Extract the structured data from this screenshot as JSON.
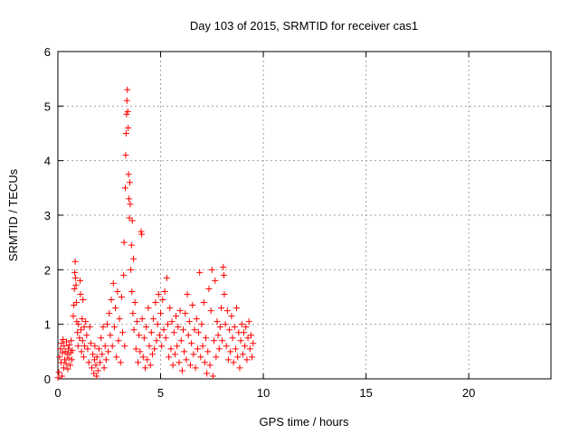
{
  "chart_data": {
    "type": "scatter",
    "title": "Day 103 of 2015, SRMTID for receiver cas1",
    "xlabel": "GPS time / hours",
    "ylabel": "SRMTID / TECUs",
    "xlim": [
      0,
      24
    ],
    "ylim": [
      0,
      6
    ],
    "xticks": [
      0,
      5,
      10,
      15,
      20
    ],
    "yticks": [
      0,
      1,
      2,
      3,
      4,
      5,
      6
    ],
    "grid": true,
    "marker": "+",
    "color": "#ff0000",
    "series": [
      {
        "name": "SRMTID",
        "points": [
          [
            0.0,
            0.02
          ],
          [
            0.05,
            0.12
          ],
          [
            0.08,
            0.4
          ],
          [
            0.12,
            0.55
          ],
          [
            0.15,
            0.3
          ],
          [
            0.18,
            0.65
          ],
          [
            0.2,
            0.05
          ],
          [
            0.22,
            0.48
          ],
          [
            0.25,
            0.72
          ],
          [
            0.28,
            0.2
          ],
          [
            0.3,
            0.6
          ],
          [
            0.33,
            0.35
          ],
          [
            0.36,
            0.5
          ],
          [
            0.4,
            0.28
          ],
          [
            0.42,
            0.68
          ],
          [
            0.45,
            0.45
          ],
          [
            0.48,
            0.18
          ],
          [
            0.5,
            0.55
          ],
          [
            0.53,
            0.38
          ],
          [
            0.56,
            0.62
          ],
          [
            0.6,
            0.25
          ],
          [
            0.62,
            0.48
          ],
          [
            0.65,
            0.7
          ],
          [
            0.68,
            0.35
          ],
          [
            0.7,
            0.52
          ],
          [
            0.75,
            1.15
          ],
          [
            0.78,
            1.35
          ],
          [
            0.8,
            1.65
          ],
          [
            0.82,
            1.95
          ],
          [
            0.84,
            2.15
          ],
          [
            0.86,
            1.85
          ],
          [
            0.88,
            1.72
          ],
          [
            0.9,
            1.4
          ],
          [
            0.92,
            1.05
          ],
          [
            0.95,
            0.85
          ],
          [
            0.98,
            0.6
          ],
          [
            1.0,
            1.0
          ],
          [
            1.05,
            0.75
          ],
          [
            1.08,
            1.8
          ],
          [
            1.1,
            1.55
          ],
          [
            1.12,
            0.9
          ],
          [
            1.15,
            0.5
          ],
          [
            1.18,
            1.1
          ],
          [
            1.2,
            0.7
          ],
          [
            1.22,
            1.45
          ],
          [
            1.25,
            0.4
          ],
          [
            1.28,
            0.95
          ],
          [
            1.3,
            0.6
          ],
          [
            1.35,
            1.05
          ],
          [
            1.4,
            0.8
          ],
          [
            1.45,
            0.55
          ],
          [
            1.5,
            0.3
          ],
          [
            1.55,
            0.95
          ],
          [
            1.6,
            0.65
          ],
          [
            1.65,
            0.2
          ],
          [
            1.7,
            0.45
          ],
          [
            1.75,
            0.1
          ],
          [
            1.78,
            0.35
          ],
          [
            1.8,
            0.6
          ],
          [
            1.85,
            0.25
          ],
          [
            1.88,
            0.05
          ],
          [
            1.9,
            0.4
          ],
          [
            1.95,
            0.15
          ],
          [
            2.0,
            0.55
          ],
          [
            2.05,
            0.3
          ],
          [
            2.1,
            0.75
          ],
          [
            2.15,
            0.45
          ],
          [
            2.2,
            0.95
          ],
          [
            2.25,
            0.2
          ],
          [
            2.3,
            0.6
          ],
          [
            2.35,
            0.35
          ],
          [
            2.4,
            1.0
          ],
          [
            2.45,
            0.5
          ],
          [
            2.5,
            1.2
          ],
          [
            2.55,
            0.8
          ],
          [
            2.6,
            1.45
          ],
          [
            2.65,
            0.6
          ],
          [
            2.7,
            1.75
          ],
          [
            2.75,
            0.95
          ],
          [
            2.8,
            1.3
          ],
          [
            2.85,
            0.4
          ],
          [
            2.9,
            1.6
          ],
          [
            2.95,
            0.7
          ],
          [
            3.0,
            1.1
          ],
          [
            3.05,
            0.3
          ],
          [
            3.1,
            1.5
          ],
          [
            3.15,
            0.85
          ],
          [
            3.2,
            1.9
          ],
          [
            3.22,
            2.5
          ],
          [
            3.25,
            0.6
          ],
          [
            3.28,
            3.5
          ],
          [
            3.3,
            4.1
          ],
          [
            3.32,
            4.5
          ],
          [
            3.34,
            4.85
          ],
          [
            3.36,
            5.1
          ],
          [
            3.38,
            5.3
          ],
          [
            3.4,
            4.9
          ],
          [
            3.42,
            4.6
          ],
          [
            3.44,
            3.75
          ],
          [
            3.46,
            3.3
          ],
          [
            3.48,
            2.95
          ],
          [
            3.5,
            3.6
          ],
          [
            3.52,
            3.2
          ],
          [
            3.55,
            2.0
          ],
          [
            3.58,
            2.45
          ],
          [
            3.6,
            1.6
          ],
          [
            3.62,
            2.9
          ],
          [
            3.65,
            1.2
          ],
          [
            3.68,
            2.2
          ],
          [
            3.7,
            0.9
          ],
          [
            3.75,
            1.4
          ],
          [
            3.8,
            0.55
          ],
          [
            3.85,
            1.05
          ],
          [
            3.9,
            0.3
          ],
          [
            3.95,
            0.8
          ],
          [
            4.0,
            0.5
          ],
          [
            4.05,
            2.7
          ],
          [
            4.08,
            2.65
          ],
          [
            4.1,
            1.1
          ],
          [
            4.15,
            0.4
          ],
          [
            4.2,
            0.75
          ],
          [
            4.25,
            0.2
          ],
          [
            4.3,
            0.95
          ],
          [
            4.35,
            0.35
          ],
          [
            4.4,
            1.3
          ],
          [
            4.45,
            0.6
          ],
          [
            4.5,
            0.25
          ],
          [
            4.55,
            0.85
          ],
          [
            4.6,
            0.45
          ],
          [
            4.65,
            1.1
          ],
          [
            4.7,
            0.55
          ],
          [
            4.75,
            1.4
          ],
          [
            4.8,
            0.7
          ],
          [
            4.85,
            1.0
          ],
          [
            4.9,
            1.55
          ],
          [
            4.95,
            0.8
          ],
          [
            5.0,
            1.2
          ],
          [
            5.05,
            0.6
          ],
          [
            5.1,
            1.45
          ],
          [
            5.15,
            0.9
          ],
          [
            5.2,
            1.6
          ],
          [
            5.25,
            0.75
          ],
          [
            5.3,
            1.85
          ],
          [
            5.35,
            1.0
          ],
          [
            5.4,
            0.4
          ],
          [
            5.45,
            1.3
          ],
          [
            5.5,
            0.55
          ],
          [
            5.55,
            1.05
          ],
          [
            5.6,
            0.25
          ],
          [
            5.65,
            0.85
          ],
          [
            5.7,
            0.45
          ],
          [
            5.75,
            1.15
          ],
          [
            5.8,
            0.6
          ],
          [
            5.85,
            0.95
          ],
          [
            5.9,
            0.3
          ],
          [
            5.95,
            1.25
          ],
          [
            6.0,
            0.7
          ],
          [
            6.05,
            0.15
          ],
          [
            6.1,
            0.9
          ],
          [
            6.15,
            0.5
          ],
          [
            6.2,
            1.2
          ],
          [
            6.25,
            0.35
          ],
          [
            6.3,
            1.55
          ],
          [
            6.35,
            0.8
          ],
          [
            6.4,
            1.05
          ],
          [
            6.45,
            0.25
          ],
          [
            6.5,
            0.65
          ],
          [
            6.55,
            1.35
          ],
          [
            6.6,
            0.45
          ],
          [
            6.65,
            0.9
          ],
          [
            6.7,
            0.2
          ],
          [
            6.75,
            1.1
          ],
          [
            6.8,
            0.55
          ],
          [
            6.85,
            0.85
          ],
          [
            6.9,
            1.95
          ],
          [
            6.95,
            0.4
          ],
          [
            7.0,
            1.0
          ],
          [
            7.05,
            0.6
          ],
          [
            7.1,
            1.4
          ],
          [
            7.15,
            0.3
          ],
          [
            7.2,
            0.75
          ],
          [
            7.25,
            0.1
          ],
          [
            7.3,
            0.5
          ],
          [
            7.35,
            1.65
          ],
          [
            7.4,
            0.25
          ],
          [
            7.45,
            1.25
          ],
          [
            7.5,
            2.0
          ],
          [
            7.55,
            0.05
          ],
          [
            7.6,
            0.7
          ],
          [
            7.65,
            1.8
          ],
          [
            7.7,
            0.4
          ],
          [
            7.75,
            1.05
          ],
          [
            7.8,
            0.8
          ],
          [
            7.85,
            0.55
          ],
          [
            7.9,
            0.95
          ],
          [
            7.95,
            1.3
          ],
          [
            8.0,
            0.7
          ],
          [
            8.05,
            2.05
          ],
          [
            8.08,
            1.9
          ],
          [
            8.1,
            1.55
          ],
          [
            8.15,
            1.0
          ],
          [
            8.2,
            0.6
          ],
          [
            8.25,
            1.25
          ],
          [
            8.3,
            0.35
          ],
          [
            8.35,
            0.9
          ],
          [
            8.4,
            0.5
          ],
          [
            8.45,
            1.15
          ],
          [
            8.5,
            0.75
          ],
          [
            8.55,
            0.3
          ],
          [
            8.6,
            0.95
          ],
          [
            8.65,
            0.55
          ],
          [
            8.7,
            1.3
          ],
          [
            8.75,
            0.4
          ],
          [
            8.8,
            0.85
          ],
          [
            8.85,
            0.2
          ],
          [
            8.9,
            0.7
          ],
          [
            8.95,
            1.0
          ],
          [
            9.0,
            0.45
          ],
          [
            9.05,
            0.85
          ],
          [
            9.1,
            0.6
          ],
          [
            9.15,
            0.95
          ],
          [
            9.2,
            0.35
          ],
          [
            9.25,
            0.75
          ],
          [
            9.3,
            1.05
          ],
          [
            9.35,
            0.55
          ],
          [
            9.4,
            0.8
          ],
          [
            9.45,
            0.4
          ],
          [
            9.5,
            0.65
          ]
        ]
      }
    ]
  }
}
